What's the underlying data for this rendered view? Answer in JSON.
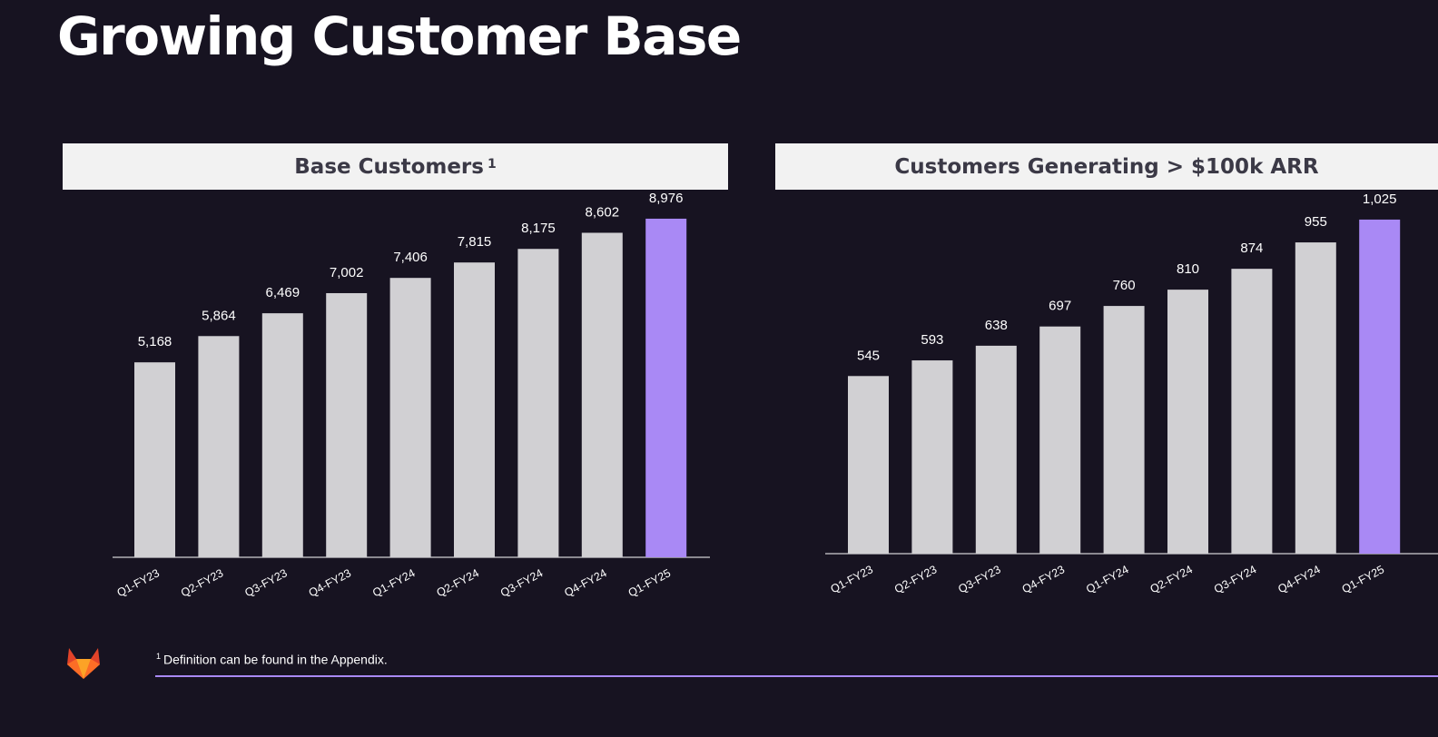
{
  "slide": {
    "title": "Growing Customer Base",
    "footnote_marker": "1",
    "footnote": "Definition can be found in the Appendix."
  },
  "colors": {
    "background": "#171321",
    "bar": "#d1d0d3",
    "bar_highlight": "#a989f5",
    "footnote_rule": "#a989f5"
  },
  "logo_icon": "gitlab-fox-icon",
  "chart_data": [
    {
      "type": "bar",
      "title": "Base Customers",
      "title_superscript": "1",
      "categories": [
        "Q1-FY23",
        "Q2-FY23",
        "Q3-FY23",
        "Q4-FY23",
        "Q1-FY24",
        "Q2-FY24",
        "Q3-FY24",
        "Q4-FY24",
        "Q1-FY25"
      ],
      "values": [
        5168,
        5864,
        6469,
        7002,
        7406,
        7815,
        8175,
        8602,
        8976
      ],
      "value_labels": [
        "5,168",
        "5,864",
        "6,469",
        "7,002",
        "7,406",
        "7,815",
        "8,175",
        "8,602",
        "8,976"
      ],
      "highlighted_category": "Q1-FY25",
      "ylim": [
        0,
        9600
      ],
      "y_axis_shown": false,
      "grid": false
    },
    {
      "type": "bar",
      "title": "Customers Generating > $100k ARR",
      "categories": [
        "Q1-FY23",
        "Q2-FY23",
        "Q3-FY23",
        "Q4-FY23",
        "Q1-FY24",
        "Q2-FY24",
        "Q3-FY24",
        "Q4-FY24",
        "Q1-FY25"
      ],
      "values": [
        545,
        593,
        638,
        697,
        760,
        810,
        874,
        955,
        1025
      ],
      "value_labels": [
        "545",
        "593",
        "638",
        "697",
        "760",
        "810",
        "874",
        "955",
        "1,025"
      ],
      "highlighted_category": "Q1-FY25",
      "ylim": [
        0,
        1100
      ],
      "y_axis_shown": false,
      "grid": false
    }
  ]
}
